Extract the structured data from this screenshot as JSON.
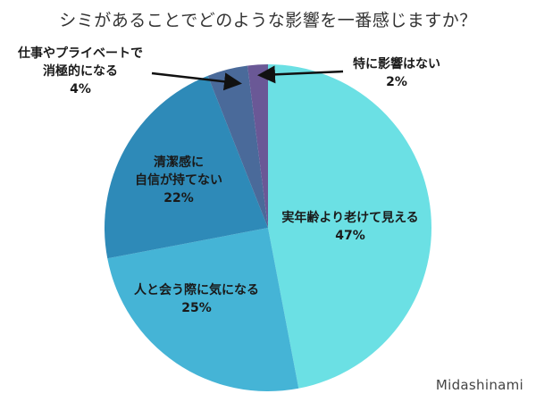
{
  "title": "シミがあることでどのような影響を一番感じますか？",
  "watermark": "Midashinami",
  "chart_data": {
    "type": "pie",
    "title": "シミがあることでどのような影響を一番感じますか？",
    "start_angle_deg": 0,
    "direction": "clockwise",
    "center": [
      300,
      255
    ],
    "radius": 183,
    "legend": "none (direct labels)",
    "slices": [
      {
        "label": "実年齢より老けて見える",
        "value": 47,
        "pct_text": "47%",
        "color": "#6BE0E4"
      },
      {
        "label": "人と会う際に気になる",
        "value": 25,
        "pct_text": "25%",
        "color": "#45B4D6"
      },
      {
        "label": "清潔感に自信が持てない",
        "value": 22,
        "pct_text": "22%",
        "color": "#2E8AB8"
      },
      {
        "label": "仕事やプライベートで消極的になる",
        "value": 4,
        "pct_text": "4%",
        "color": "#4A6A9A"
      },
      {
        "label": "特に影響はない",
        "value": 2,
        "pct_text": "2%",
        "color": "#6A5896"
      }
    ]
  },
  "labels": {
    "s0": {
      "line1": "実年齢より老けて見える",
      "line2": "47%"
    },
    "s1": {
      "line1": "人と会う際に気になる",
      "line2": "25%"
    },
    "s2": {
      "line1": "清潔感に",
      "line2": "自信が持てない",
      "line3": "22%"
    },
    "s3": {
      "line1": "仕事やプライベートで",
      "line2": "消極的になる",
      "line3": "4%"
    },
    "s4": {
      "line1": "特に影響はない",
      "line2": "2%"
    }
  }
}
